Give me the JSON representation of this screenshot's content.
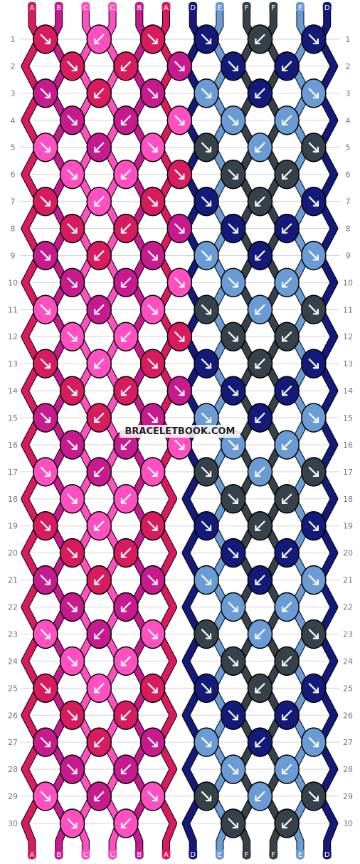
{
  "watermark": "BRACELETBOOK.COM",
  "top_labels": [
    "A",
    "B",
    "C",
    "C",
    "B",
    "A",
    "D",
    "E",
    "F",
    "F",
    "E",
    "D"
  ],
  "bottom_labels": [
    "A",
    "B",
    "C",
    "C",
    "B",
    "A",
    "D",
    "E",
    "F",
    "F",
    "E",
    "D"
  ],
  "row_numbers": [
    "1",
    "2",
    "3",
    "4",
    "5",
    "6",
    "7",
    "8",
    "9",
    "10",
    "11",
    "12",
    "13",
    "14",
    "15",
    "16",
    "17",
    "18",
    "19",
    "20",
    "21",
    "22",
    "23",
    "24",
    "25",
    "26",
    "27",
    "28",
    "29",
    "30"
  ],
  "colors": {
    "A": "#d81b5e",
    "B": "#c71a8e",
    "C": "#ff4fc0",
    "D": "#131a7a",
    "E": "#6a9bd4",
    "F": "#37414a"
  },
  "knot_arrow_icons": {
    "forward": "arrow-down-right-icon",
    "backward": "arrow-down-left-icon"
  },
  "knots": [
    [
      "A",
      "C",
      "A",
      "D",
      "F",
      "D"
    ],
    [
      "A",
      "A",
      "B",
      "D",
      "D"
    ],
    [
      "B",
      "A",
      "B",
      "E",
      "D",
      "E"
    ],
    [
      "B",
      "B",
      "C",
      "E",
      "E"
    ],
    [
      "C",
      "B",
      "C",
      "F",
      "E",
      "F"
    ],
    [
      "C",
      "C",
      "A",
      "F",
      "F"
    ],
    [
      "A",
      "C",
      "A",
      "D",
      "F",
      "D"
    ],
    [
      "A",
      "A",
      "B",
      "D",
      "D"
    ],
    [
      "B",
      "A",
      "B",
      "E",
      "D",
      "E"
    ],
    [
      "B",
      "B",
      "C",
      "E",
      "E"
    ],
    [
      "C",
      "B",
      "C",
      "F",
      "E",
      "F"
    ],
    [
      "C",
      "C",
      "A",
      "F",
      "F"
    ],
    [
      "A",
      "C",
      "A",
      "D",
      "F",
      "D"
    ],
    [
      "A",
      "A",
      "B",
      "D",
      "D"
    ],
    [
      "B",
      "A",
      "B",
      "E",
      "D",
      "E"
    ],
    [
      "B",
      "B",
      "C",
      "E",
      "E"
    ],
    [
      "C",
      "B",
      "C",
      "F",
      "E",
      "F"
    ],
    [
      "C",
      "C",
      "",
      "F",
      "F"
    ],
    [
      "A",
      "C",
      "A",
      "D",
      "F",
      "D"
    ],
    [
      "A",
      "A",
      "",
      "D",
      "D"
    ],
    [
      "B",
      "A",
      "B",
      "E",
      "D",
      "E"
    ],
    [
      "B",
      "B",
      "",
      "E",
      "E"
    ],
    [
      "C",
      "B",
      "C",
      "F",
      "E",
      "F"
    ],
    [
      "C",
      "C",
      "",
      "F",
      "F"
    ],
    [
      "A",
      "C",
      "A",
      "D",
      "F",
      "D"
    ],
    [
      "A",
      "A",
      "",
      "D",
      "D"
    ],
    [
      "B",
      "A",
      "B",
      "E",
      "D",
      "E"
    ],
    [
      "B",
      "B",
      "",
      "E",
      "E"
    ],
    [
      "C",
      "B",
      "C",
      "F",
      "E",
      "F"
    ],
    [
      "C",
      "C",
      "",
      "F",
      "F"
    ]
  ]
}
